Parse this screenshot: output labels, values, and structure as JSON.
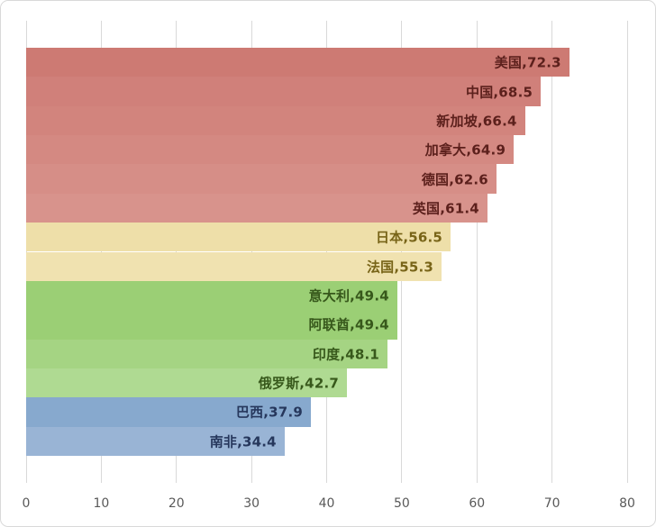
{
  "chart_data": {
    "type": "bar",
    "orientation": "horizontal",
    "title": "",
    "xlabel": "",
    "ylabel": "",
    "xlim": [
      0,
      80
    ],
    "x_ticks": [
      "0",
      "10",
      "20",
      "30",
      "40",
      "50",
      "60",
      "70",
      "80"
    ],
    "grid": true,
    "legend": false,
    "categories": [
      "美国",
      "中国",
      "新加坡",
      "加拿大",
      "德国",
      "英国",
      "日本",
      "法国",
      "意大利",
      "阿联酋",
      "印度",
      "俄罗斯",
      "巴西",
      "南非"
    ],
    "values": [
      72.3,
      68.5,
      66.4,
      64.9,
      62.6,
      61.4,
      56.5,
      55.3,
      49.4,
      49.4,
      48.1,
      42.7,
      37.9,
      34.4
    ],
    "data_labels": [
      "美国,72.3",
      "中国,68.5",
      "新加坡,66.4",
      "加拿大,64.9",
      "德国,62.6",
      "英国,61.4",
      "日本,56.5",
      "法国,55.3",
      "意大利,49.4",
      "阿联酋,49.4",
      "印度,48.1",
      "俄罗斯,42.7",
      "巴西,37.9",
      "南非,34.4"
    ],
    "bar_colors": [
      "#cd7a73",
      "#d0807a",
      "#d2847d",
      "#d48982",
      "#d68e87",
      "#d8938c",
      "#eedfa9",
      "#f0e2b0",
      "#9bcf75",
      "#9bcf75",
      "#a5d483",
      "#afda92",
      "#87a9ce",
      "#99b4d5"
    ],
    "label_colors": [
      "#5c201c",
      "#5c201c",
      "#5c201c",
      "#5c201c",
      "#5c201c",
      "#5c201c",
      "#786418",
      "#786418",
      "#37581b",
      "#37581b",
      "#37581b",
      "#37581b",
      "#26375c",
      "#26375c"
    ],
    "colors": {
      "gridline": "#d9d9d9",
      "axis_text": "#595959",
      "frame_border": "#d9d9d9",
      "background": "#ffffff"
    }
  }
}
